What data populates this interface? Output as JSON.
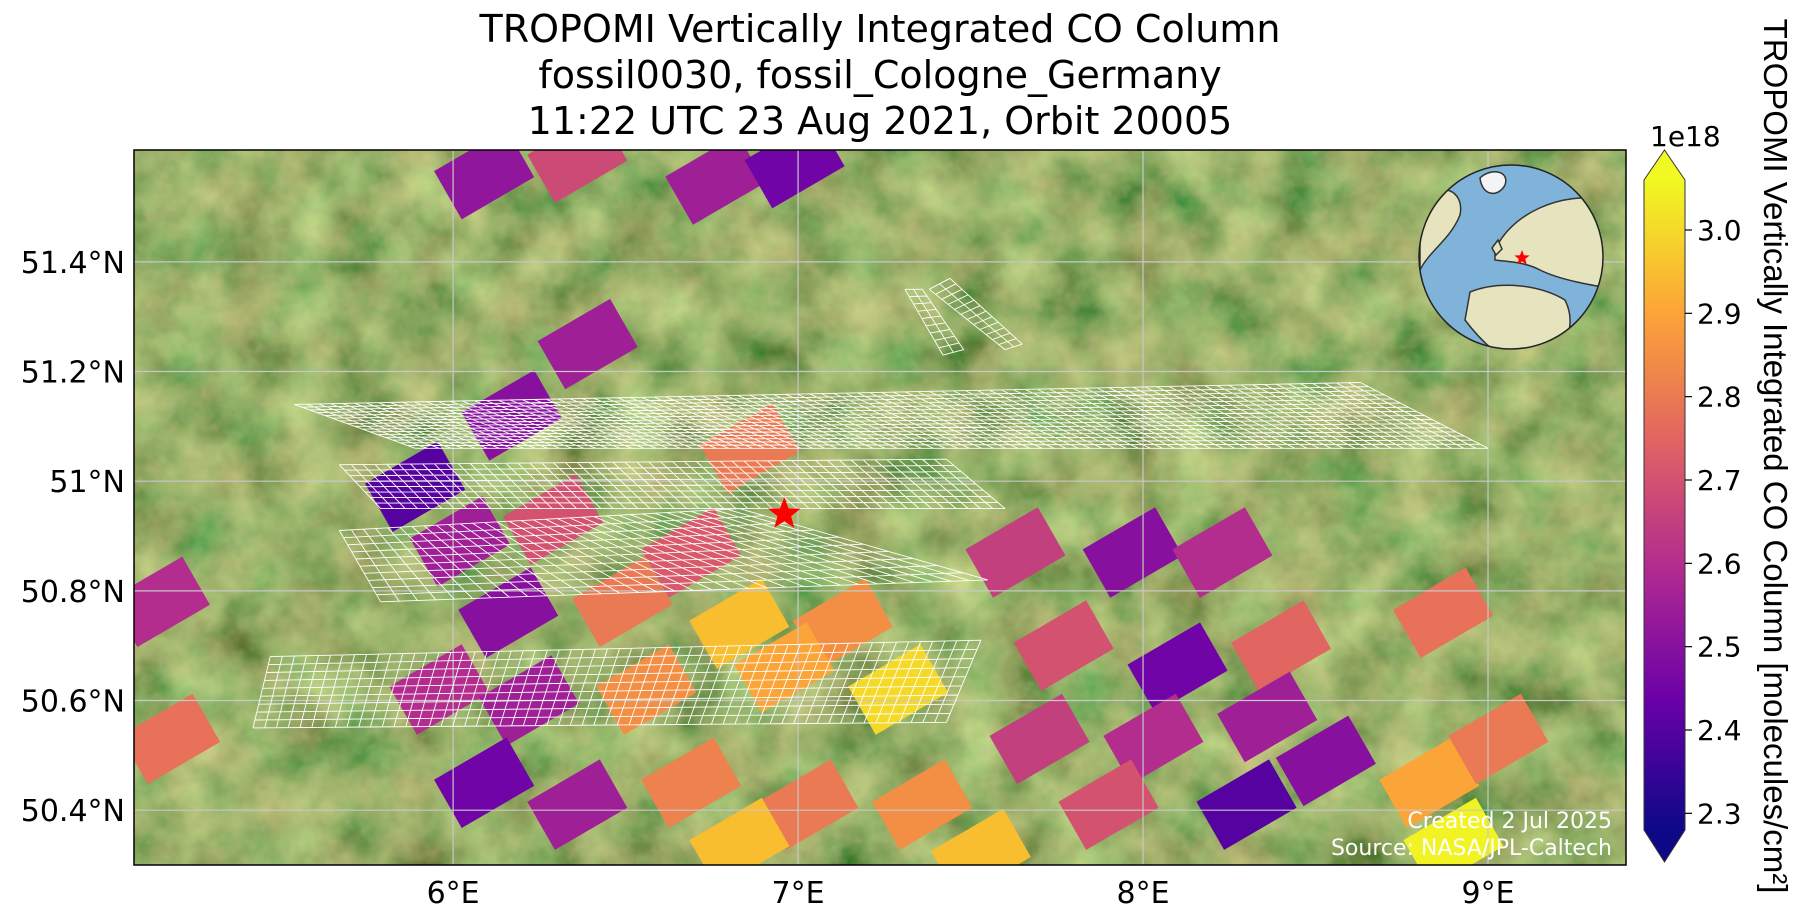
{
  "title": {
    "line1": "TROPOMI Vertically Integrated CO Column",
    "line2": "fossil0030, fossil_Cologne_Germany",
    "line3": "11:22 UTC 23 Aug 2021, Orbit 20005"
  },
  "credits": {
    "created": "Created 2 Jul 2025",
    "source": "Source: NASA/JPL-Caltech"
  },
  "colors": {
    "star": "#ff0000",
    "mesh": "#ffffff",
    "grid": "#c8c8c8"
  },
  "chart_data": {
    "type": "map",
    "extent": {
      "lon": [
        5.075,
        9.4
      ],
      "lat": [
        50.3,
        51.604
      ]
    },
    "x_ticks": [
      {
        "value": 6,
        "label": "6°E"
      },
      {
        "value": 7,
        "label": "7°E"
      },
      {
        "value": 8,
        "label": "8°E"
      },
      {
        "value": 9,
        "label": "9°E"
      }
    ],
    "y_ticks": [
      {
        "value": 51.4,
        "label": "51.4°N"
      },
      {
        "value": 51.2,
        "label": "51.2°N"
      },
      {
        "value": 51.0,
        "label": "51°N"
      },
      {
        "value": 50.8,
        "label": "50.8°N"
      },
      {
        "value": 50.6,
        "label": "50.6°N"
      },
      {
        "value": 50.4,
        "label": "50.4°N"
      }
    ],
    "site": {
      "name": "fossil_Cologne_Germany",
      "lon": 6.96,
      "lat": 50.94
    },
    "colorbar": {
      "label": "TROPOMI Vertically Integrated CO Column [molecules/cm²]",
      "exponent": "1e18",
      "cmap": "plasma",
      "vmin": 2.28,
      "vmax": 3.06,
      "ticks": [
        2.3,
        2.4,
        2.5,
        2.6,
        2.7,
        2.8,
        2.9,
        3.0
      ],
      "tick_labels": [
        "2.3",
        "2.4",
        "2.5",
        "2.6",
        "2.7",
        "2.8",
        "2.9",
        "3.0"
      ],
      "stops": [
        "#0d0887",
        "#6a00a8",
        "#b12a90",
        "#e16462",
        "#fca636",
        "#f0f921"
      ]
    },
    "soundings": [
      [
        6.09,
        51.56,
        2.52
      ],
      [
        6.36,
        51.59,
        2.68
      ],
      [
        6.76,
        51.55,
        2.55
      ],
      [
        6.99,
        51.58,
        2.45
      ],
      [
        6.39,
        51.25,
        2.55
      ],
      [
        6.17,
        51.12,
        2.5
      ],
      [
        5.89,
        50.99,
        2.4
      ],
      [
        6.02,
        50.89,
        2.55
      ],
      [
        6.29,
        50.93,
        2.7
      ],
      [
        6.69,
        50.87,
        2.72
      ],
      [
        6.86,
        51.06,
        2.8
      ],
      [
        6.16,
        50.76,
        2.5
      ],
      [
        6.49,
        50.78,
        2.8
      ],
      [
        6.83,
        50.74,
        2.95
      ],
      [
        7.13,
        50.74,
        2.85
      ],
      [
        5.96,
        50.62,
        2.6
      ],
      [
        6.22,
        50.6,
        2.55
      ],
      [
        6.56,
        50.62,
        2.85
      ],
      [
        6.96,
        50.66,
        2.9
      ],
      [
        7.29,
        50.62,
        3.0
      ],
      [
        5.15,
        50.78,
        2.6
      ],
      [
        5.18,
        50.53,
        2.78
      ],
      [
        6.09,
        50.45,
        2.45
      ],
      [
        6.36,
        50.41,
        2.55
      ],
      [
        6.69,
        50.45,
        2.82
      ],
      [
        7.03,
        50.41,
        2.8
      ],
      [
        6.83,
        50.34,
        2.95
      ],
      [
        7.36,
        50.41,
        2.85
      ],
      [
        7.63,
        50.87,
        2.65
      ],
      [
        7.97,
        50.87,
        2.5
      ],
      [
        8.23,
        50.87,
        2.6
      ],
      [
        7.77,
        50.7,
        2.7
      ],
      [
        8.1,
        50.66,
        2.45
      ],
      [
        8.4,
        50.7,
        2.75
      ],
      [
        7.7,
        50.53,
        2.65
      ],
      [
        8.03,
        50.53,
        2.6
      ],
      [
        8.36,
        50.57,
        2.55
      ],
      [
        8.53,
        50.49,
        2.5
      ],
      [
        7.9,
        50.41,
        2.7
      ],
      [
        8.3,
        50.41,
        2.4
      ],
      [
        8.83,
        50.45,
        2.9
      ],
      [
        9.03,
        50.53,
        2.8
      ],
      [
        8.87,
        50.76,
        2.78
      ],
      [
        7.53,
        50.32,
        2.95
      ],
      [
        8.9,
        50.34,
        3.05
      ]
    ],
    "footprint_patches": [
      [
        [
          5.54,
          51.14
        ],
        [
          8.63,
          51.18
        ],
        [
          9.0,
          51.06
        ],
        [
          5.89,
          51.06
        ]
      ],
      [
        [
          5.67,
          51.03
        ],
        [
          7.43,
          51.04
        ],
        [
          7.6,
          50.95
        ],
        [
          5.79,
          50.95
        ]
      ],
      [
        [
          5.67,
          50.91
        ],
        [
          6.83,
          50.95
        ],
        [
          7.55,
          50.82
        ],
        [
          5.79,
          50.78
        ]
      ],
      [
        [
          5.47,
          50.68
        ],
        [
          7.53,
          50.71
        ],
        [
          7.43,
          50.56
        ],
        [
          5.42,
          50.55
        ]
      ],
      [
        [
          7.31,
          51.35
        ],
        [
          7.36,
          51.35
        ],
        [
          7.48,
          51.24
        ],
        [
          7.42,
          51.23
        ]
      ],
      [
        [
          7.38,
          51.35
        ],
        [
          7.44,
          51.37
        ],
        [
          7.65,
          51.25
        ],
        [
          7.6,
          51.24
        ]
      ]
    ]
  }
}
